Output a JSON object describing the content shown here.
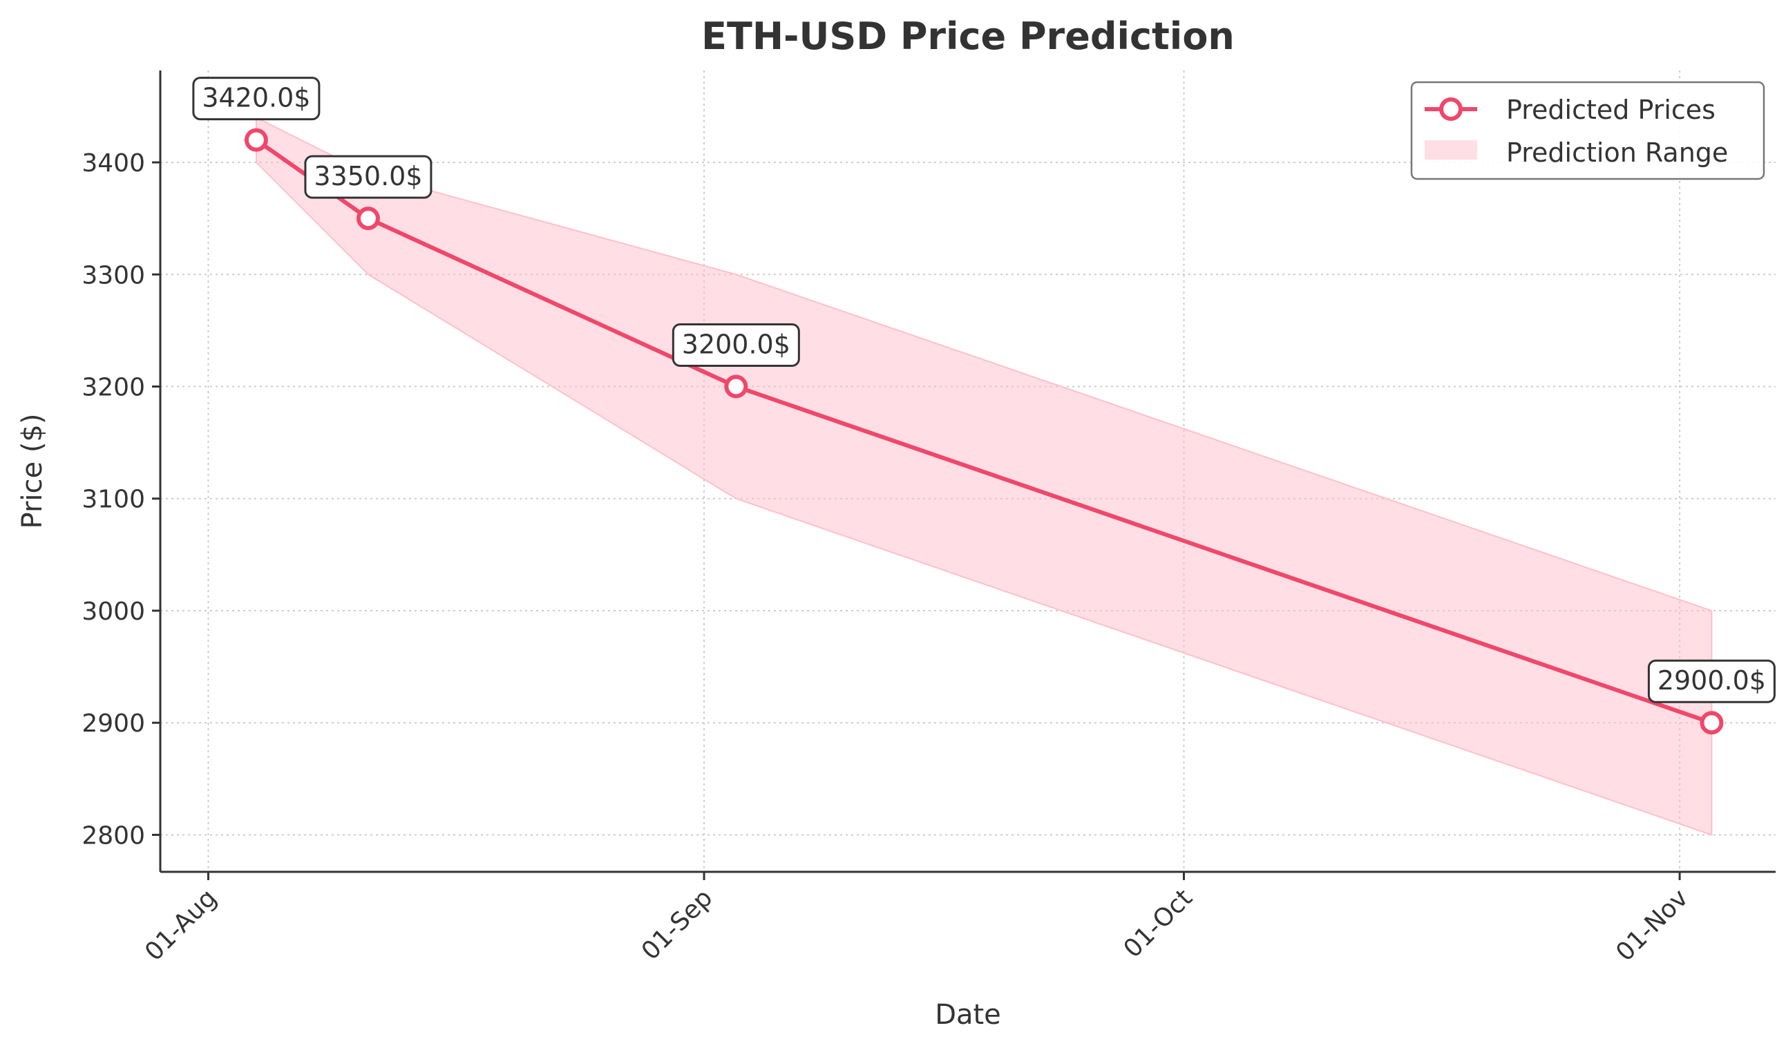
{
  "chart_data": {
    "type": "line",
    "title": "ETH-USD Price Prediction",
    "xlabel": "Date",
    "ylabel": "Price ($)",
    "x_ticks": [
      "01-Aug",
      "01-Sep",
      "01-Oct",
      "01-Nov"
    ],
    "y_ticks": [
      2800,
      2900,
      3000,
      3100,
      3200,
      3300,
      3400
    ],
    "xlim": [
      "2024-07-29",
      "2024-11-07"
    ],
    "ylim": [
      2767,
      3482
    ],
    "grid": true,
    "legend_position": "top-right",
    "series": [
      {
        "name": "Predicted Prices",
        "color": "#f0476a",
        "x": [
          "2024-08-04",
          "2024-08-11",
          "2024-09-03",
          "2024-11-03"
        ],
        "values": [
          3420,
          3350,
          3200,
          2900
        ],
        "data_labels": [
          "3420.0$",
          "3350.0$",
          "3200.0$",
          "2900.0$"
        ]
      },
      {
        "name": "Prediction Range",
        "color": "#ffc0cb",
        "x": [
          "2024-08-04",
          "2024-08-11",
          "2024-09-03",
          "2024-11-03"
        ],
        "lower": [
          3400,
          3300,
          3100,
          2800
        ],
        "upper": [
          3440,
          3390,
          3300,
          3000
        ]
      }
    ]
  }
}
